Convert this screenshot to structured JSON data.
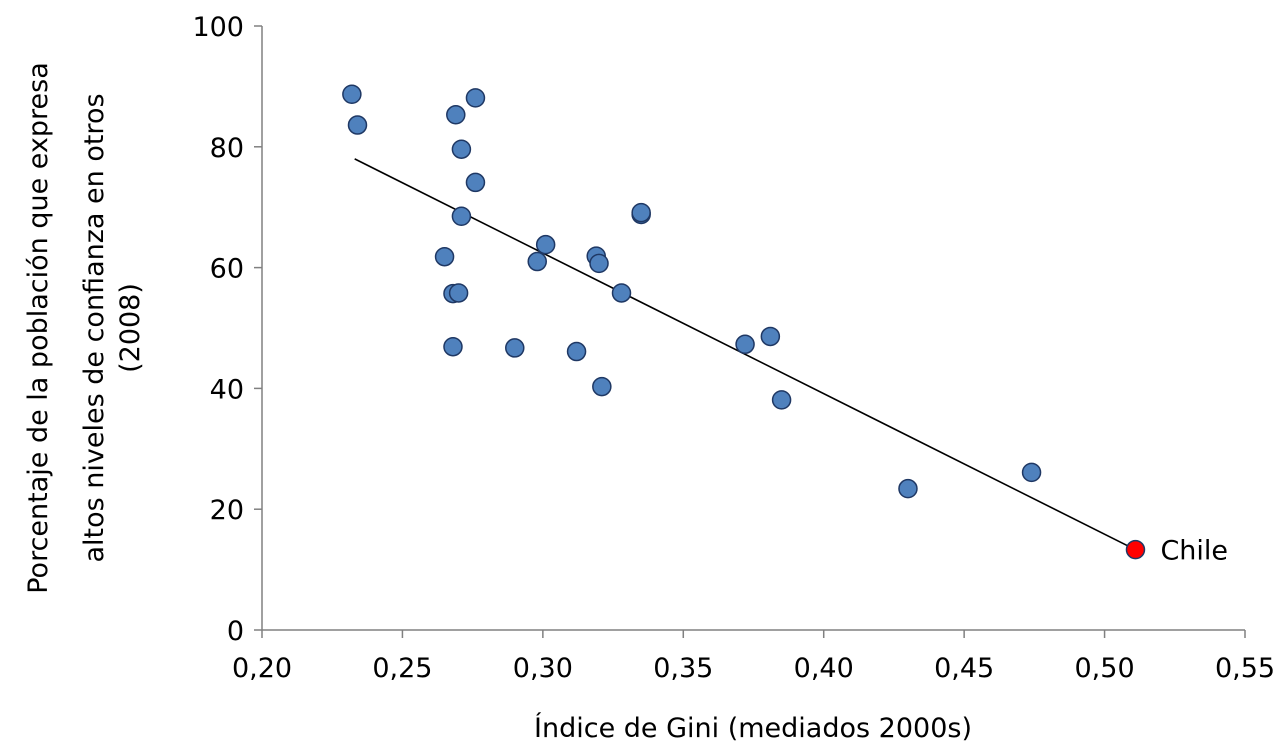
{
  "chart_data": {
    "type": "scatter",
    "title": "",
    "xlabel": "Índice de Gini (mediados 2000s)",
    "ylabel_lines": [
      "Porcentaje de la población que expresa",
      "altos niveles de confianza en otros",
      "(2008)"
    ],
    "xlim": [
      0.2,
      0.55
    ],
    "ylim": [
      0,
      100
    ],
    "x_ticks": [
      0.2,
      0.25,
      0.3,
      0.35,
      0.4,
      0.45,
      0.5,
      0.55
    ],
    "x_tick_labels": [
      "0,20",
      "0,25",
      "0,30",
      "0,35",
      "0,40",
      "0,45",
      "0,50",
      "0,55"
    ],
    "y_ticks": [
      0,
      20,
      40,
      60,
      80,
      100
    ],
    "y_tick_labels": [
      "0",
      "20",
      "40",
      "60",
      "80",
      "100"
    ],
    "grid": false,
    "legend": "none",
    "point_color": "#4f81bd",
    "point_edge_color": "#1f3864",
    "highlight_color": "#ff0000",
    "highlight_edge_color": "#8b0000",
    "points": [
      {
        "x": 0.232,
        "y": 88.7
      },
      {
        "x": 0.234,
        "y": 83.6
      },
      {
        "x": 0.269,
        "y": 85.3
      },
      {
        "x": 0.276,
        "y": 88.1
      },
      {
        "x": 0.271,
        "y": 79.6
      },
      {
        "x": 0.276,
        "y": 74.1
      },
      {
        "x": 0.271,
        "y": 68.5
      },
      {
        "x": 0.265,
        "y": 61.8
      },
      {
        "x": 0.268,
        "y": 55.7
      },
      {
        "x": 0.27,
        "y": 55.8
      },
      {
        "x": 0.268,
        "y": 46.9
      },
      {
        "x": 0.29,
        "y": 46.7
      },
      {
        "x": 0.298,
        "y": 61.0
      },
      {
        "x": 0.301,
        "y": 63.8
      },
      {
        "x": 0.312,
        "y": 46.1
      },
      {
        "x": 0.319,
        "y": 61.9
      },
      {
        "x": 0.32,
        "y": 60.7
      },
      {
        "x": 0.321,
        "y": 40.3
      },
      {
        "x": 0.328,
        "y": 55.8
      },
      {
        "x": 0.335,
        "y": 68.8
      },
      {
        "x": 0.335,
        "y": 69.1
      },
      {
        "x": 0.372,
        "y": 47.3
      },
      {
        "x": 0.381,
        "y": 48.6
      },
      {
        "x": 0.385,
        "y": 38.1
      },
      {
        "x": 0.43,
        "y": 23.4
      },
      {
        "x": 0.474,
        "y": 26.1
      }
    ],
    "highlight_point": {
      "x": 0.511,
      "y": 13.3,
      "label": "Chile"
    },
    "trendline": {
      "x1": 0.233,
      "y1": 78.0,
      "x2": 0.511,
      "y2": 13.3
    }
  }
}
